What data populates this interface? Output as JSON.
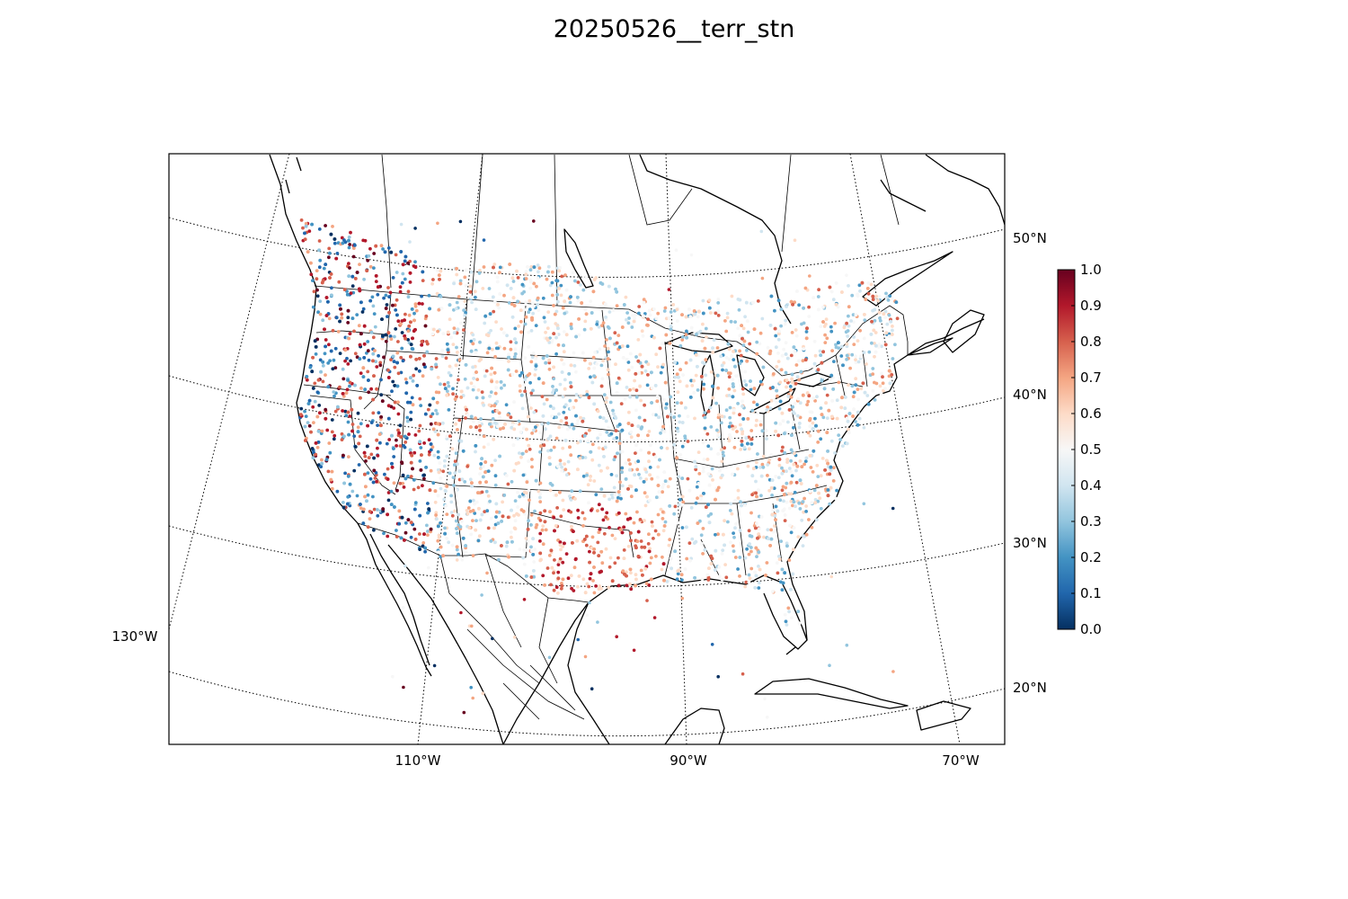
{
  "title": "20250526__terr_stn",
  "colors": {
    "colormap": [
      "#053061",
      "#2166ac",
      "#4393c3",
      "#92c5de",
      "#d1e5f0",
      "#f7f7f7",
      "#fddbc7",
      "#f4a582",
      "#d6604d",
      "#b2182b",
      "#67001f"
    ],
    "coastline": "#000000",
    "graticule": "#000000",
    "background": "#ffffff"
  },
  "map": {
    "projection": "lambert-conformal",
    "longitude_labels": [
      "130°W",
      "110°W",
      "90°W",
      "70°W"
    ],
    "latitude_labels": [
      "50°N",
      "40°N",
      "30°N",
      "20°N"
    ],
    "colorbar": {
      "min": 0.0,
      "max": 1.0,
      "tick_labels": [
        "0.0",
        "0.1",
        "0.2",
        "0.3",
        "0.4",
        "0.5",
        "0.6",
        "0.7",
        "0.8",
        "0.9",
        "1.0"
      ]
    }
  }
}
